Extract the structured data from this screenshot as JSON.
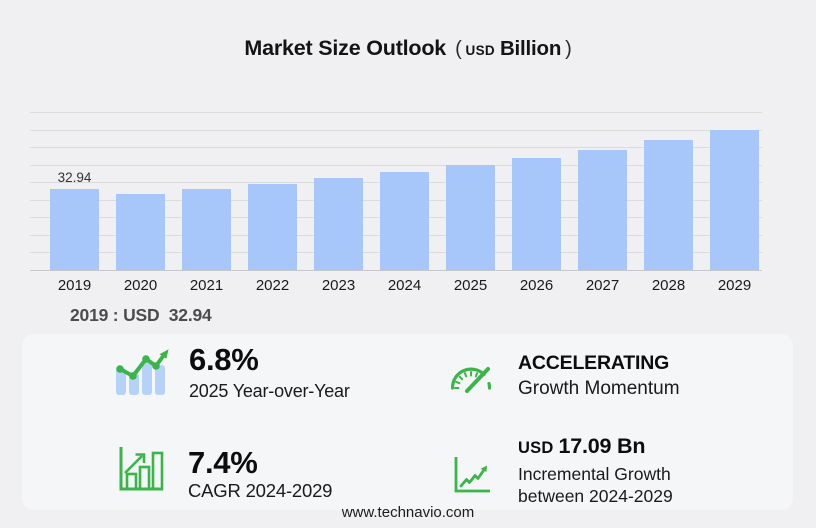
{
  "title": {
    "main": "Market Size Outlook",
    "paren_open": "(",
    "currency": "USD",
    "unit": "Billion",
    "paren_close": ")"
  },
  "chart_data": {
    "type": "bar",
    "title": "Market Size Outlook (USD Billion)",
    "categories": [
      "2019",
      "2020",
      "2021",
      "2022",
      "2023",
      "2024",
      "2025",
      "2026",
      "2027",
      "2028",
      "2029"
    ],
    "values": [
      32.94,
      30.9,
      32.9,
      35.0,
      37.3,
      39.85,
      42.56,
      45.4,
      48.9,
      52.7,
      56.94
    ],
    "labeled_points": [
      {
        "category": "2019",
        "label": "32.94"
      }
    ],
    "xlabel": "",
    "ylabel": "",
    "ylim": [
      0,
      56.94
    ],
    "grid": "horizontal",
    "legend": "none",
    "bar_color": "#a7c7fa"
  },
  "callout": "2019 : USD  32.94",
  "stats": {
    "yoy": {
      "icon": "bar-trend-icon",
      "value": "6.8%",
      "label": "2025 Year-over-Year"
    },
    "momentum": {
      "icon": "gauge-icon",
      "value": "ACCELERATING",
      "label": "Growth Momentum"
    },
    "cagr": {
      "icon": "growth-bars-icon",
      "value": "7.4%",
      "label": "CAGR 2024-2029"
    },
    "incremental": {
      "icon": "line-growth-icon",
      "prefix": "USD",
      "value": "17.09 Bn",
      "label_line1": "Incremental Growth",
      "label_line2": "between 2024-2029"
    }
  },
  "footer": {
    "url": "www.technavio.com"
  },
  "colors": {
    "background": "#f0f0f2",
    "panel": "#f5f6f8",
    "bar": "#a7c7fa",
    "icon_green": "#3bb54a",
    "icon_bar_blue": "#b7d2f8"
  }
}
